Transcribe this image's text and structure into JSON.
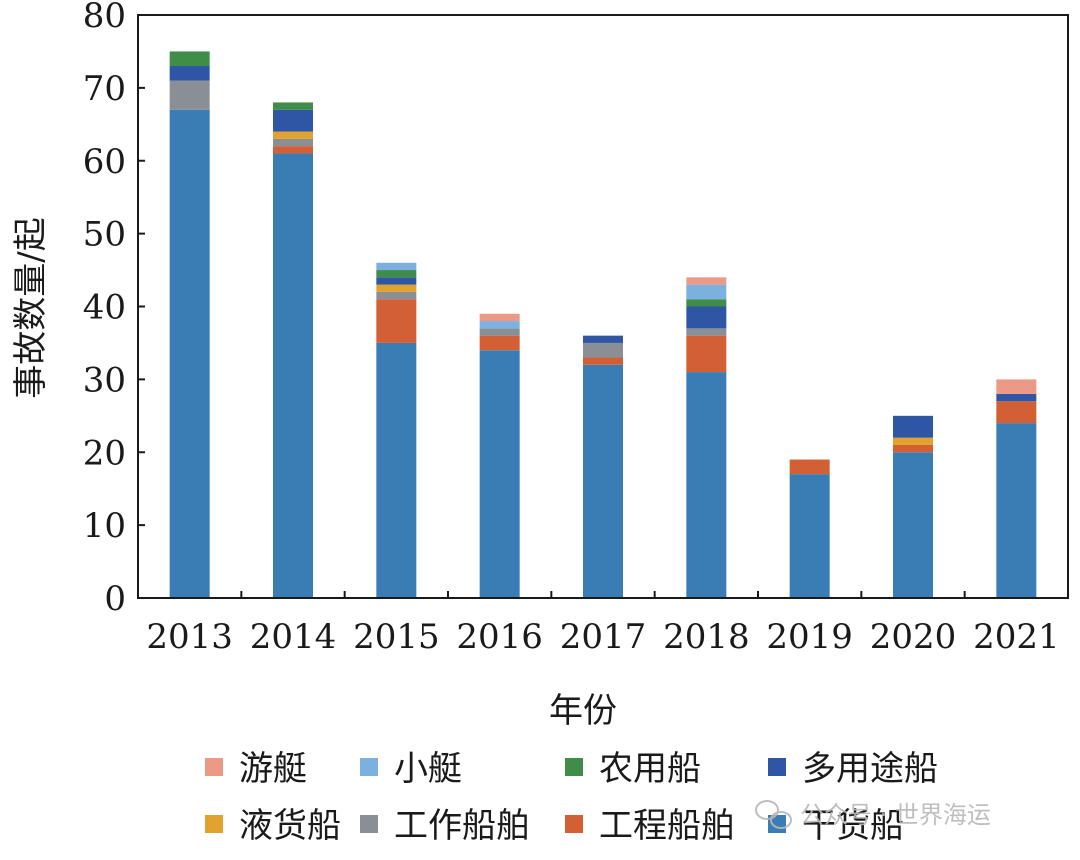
{
  "chart_data": {
    "type": "bar",
    "stacked": true,
    "categories": [
      "2013",
      "2014",
      "2015",
      "2016",
      "2017",
      "2018",
      "2019",
      "2020",
      "2021"
    ],
    "series": [
      {
        "name": "干货船",
        "color": "#3a7db5",
        "values": [
          67,
          61,
          35,
          34,
          32,
          31,
          17,
          20,
          24
        ]
      },
      {
        "name": "工程船舶",
        "color": "#d35f34",
        "values": [
          0,
          1,
          6,
          2,
          1,
          5,
          2,
          1,
          3
        ]
      },
      {
        "name": "工作船舶",
        "color": "#8a8e95",
        "values": [
          4,
          1,
          1,
          1,
          2,
          1,
          0,
          0,
          0
        ]
      },
      {
        "name": "液货船",
        "color": "#e1a32e",
        "values": [
          0,
          1,
          1,
          0,
          0,
          0,
          0,
          1,
          0
        ]
      },
      {
        "name": "多用途船",
        "color": "#2e56a4",
        "values": [
          2,
          3,
          1,
          0,
          1,
          3,
          0,
          3,
          1
        ]
      },
      {
        "name": "农用船",
        "color": "#3f8d49",
        "values": [
          2,
          1,
          1,
          0,
          0,
          1,
          0,
          0,
          0
        ]
      },
      {
        "name": "小艇",
        "color": "#7cb0de",
        "values": [
          0,
          0,
          1,
          1,
          0,
          2,
          0,
          0,
          0
        ]
      },
      {
        "name": "游艇",
        "color": "#ec9a86",
        "values": [
          0,
          0,
          0,
          1,
          0,
          1,
          0,
          0,
          2
        ]
      }
    ],
    "legend_order": [
      "游艇",
      "小艇",
      "农用船",
      "多用途船",
      "液货船",
      "工作船舶",
      "工程船舶",
      "干货船"
    ],
    "xlabel": "年份",
    "ylabel": "事故数量/起",
    "ylim": [
      0,
      80
    ],
    "yticks": [
      0,
      10,
      20,
      30,
      40,
      50,
      60,
      70,
      80
    ],
    "grid": false,
    "legend_position": "bottom"
  },
  "watermark": {
    "icon": "wechat-icon",
    "text": "公众号 · 世界海运"
  }
}
